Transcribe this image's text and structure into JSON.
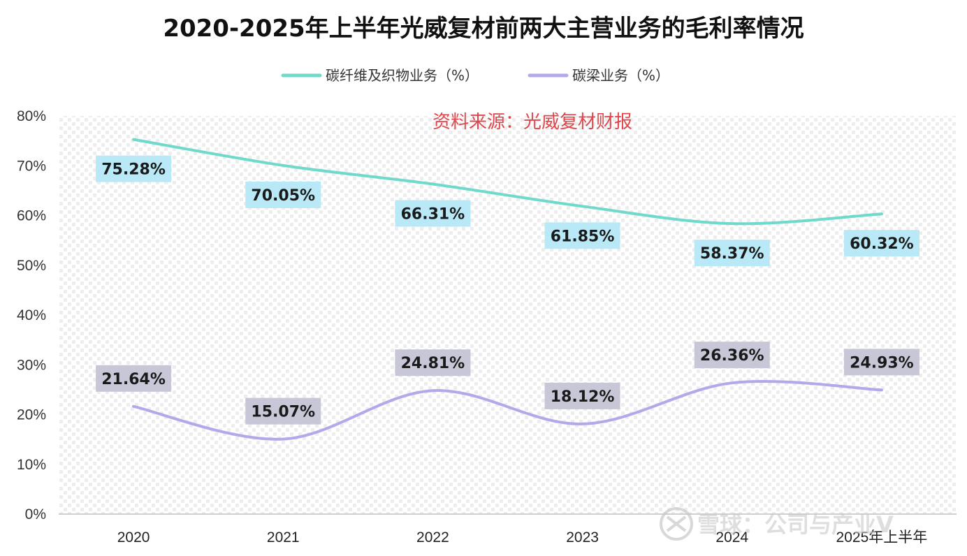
{
  "chart_data": {
    "type": "line",
    "title": "2020-2025年上半年光威复材前两大主营业务的毛利率情况",
    "source_note": "资料来源：光威复材财报",
    "categories": [
      "2020",
      "2021",
      "2022",
      "2023",
      "2024",
      "2025年上半年"
    ],
    "ylim": [
      0,
      80
    ],
    "yticks": [
      0,
      10,
      20,
      30,
      40,
      50,
      60,
      70,
      80
    ],
    "ytick_labels": [
      "0%",
      "10%",
      "20%",
      "30%",
      "40%",
      "50%",
      "60%",
      "70%",
      "80%"
    ],
    "legend_position": "top-center",
    "grid": false,
    "series": [
      {
        "name": "碳纤维及织物业务（%）",
        "color": "#6fd9cc",
        "label_bg": "#b9e8f6",
        "values": [
          75.28,
          70.05,
          66.31,
          61.85,
          58.37,
          60.32
        ],
        "labels": [
          "75.28%",
          "70.05%",
          "66.31%",
          "61.85%",
          "58.37%",
          "60.32%"
        ]
      },
      {
        "name": "碳梁业务（%）",
        "color": "#b3a8ea",
        "label_bg": "#c7c7d7",
        "values": [
          21.64,
          15.07,
          24.81,
          18.12,
          26.36,
          24.93
        ],
        "labels": [
          "21.64%",
          "15.07%",
          "24.81%",
          "18.12%",
          "26.36%",
          "24.93%"
        ]
      }
    ]
  },
  "watermark": {
    "text": "雪球：公司与产业V",
    "icon": "snowball-logo-icon"
  }
}
